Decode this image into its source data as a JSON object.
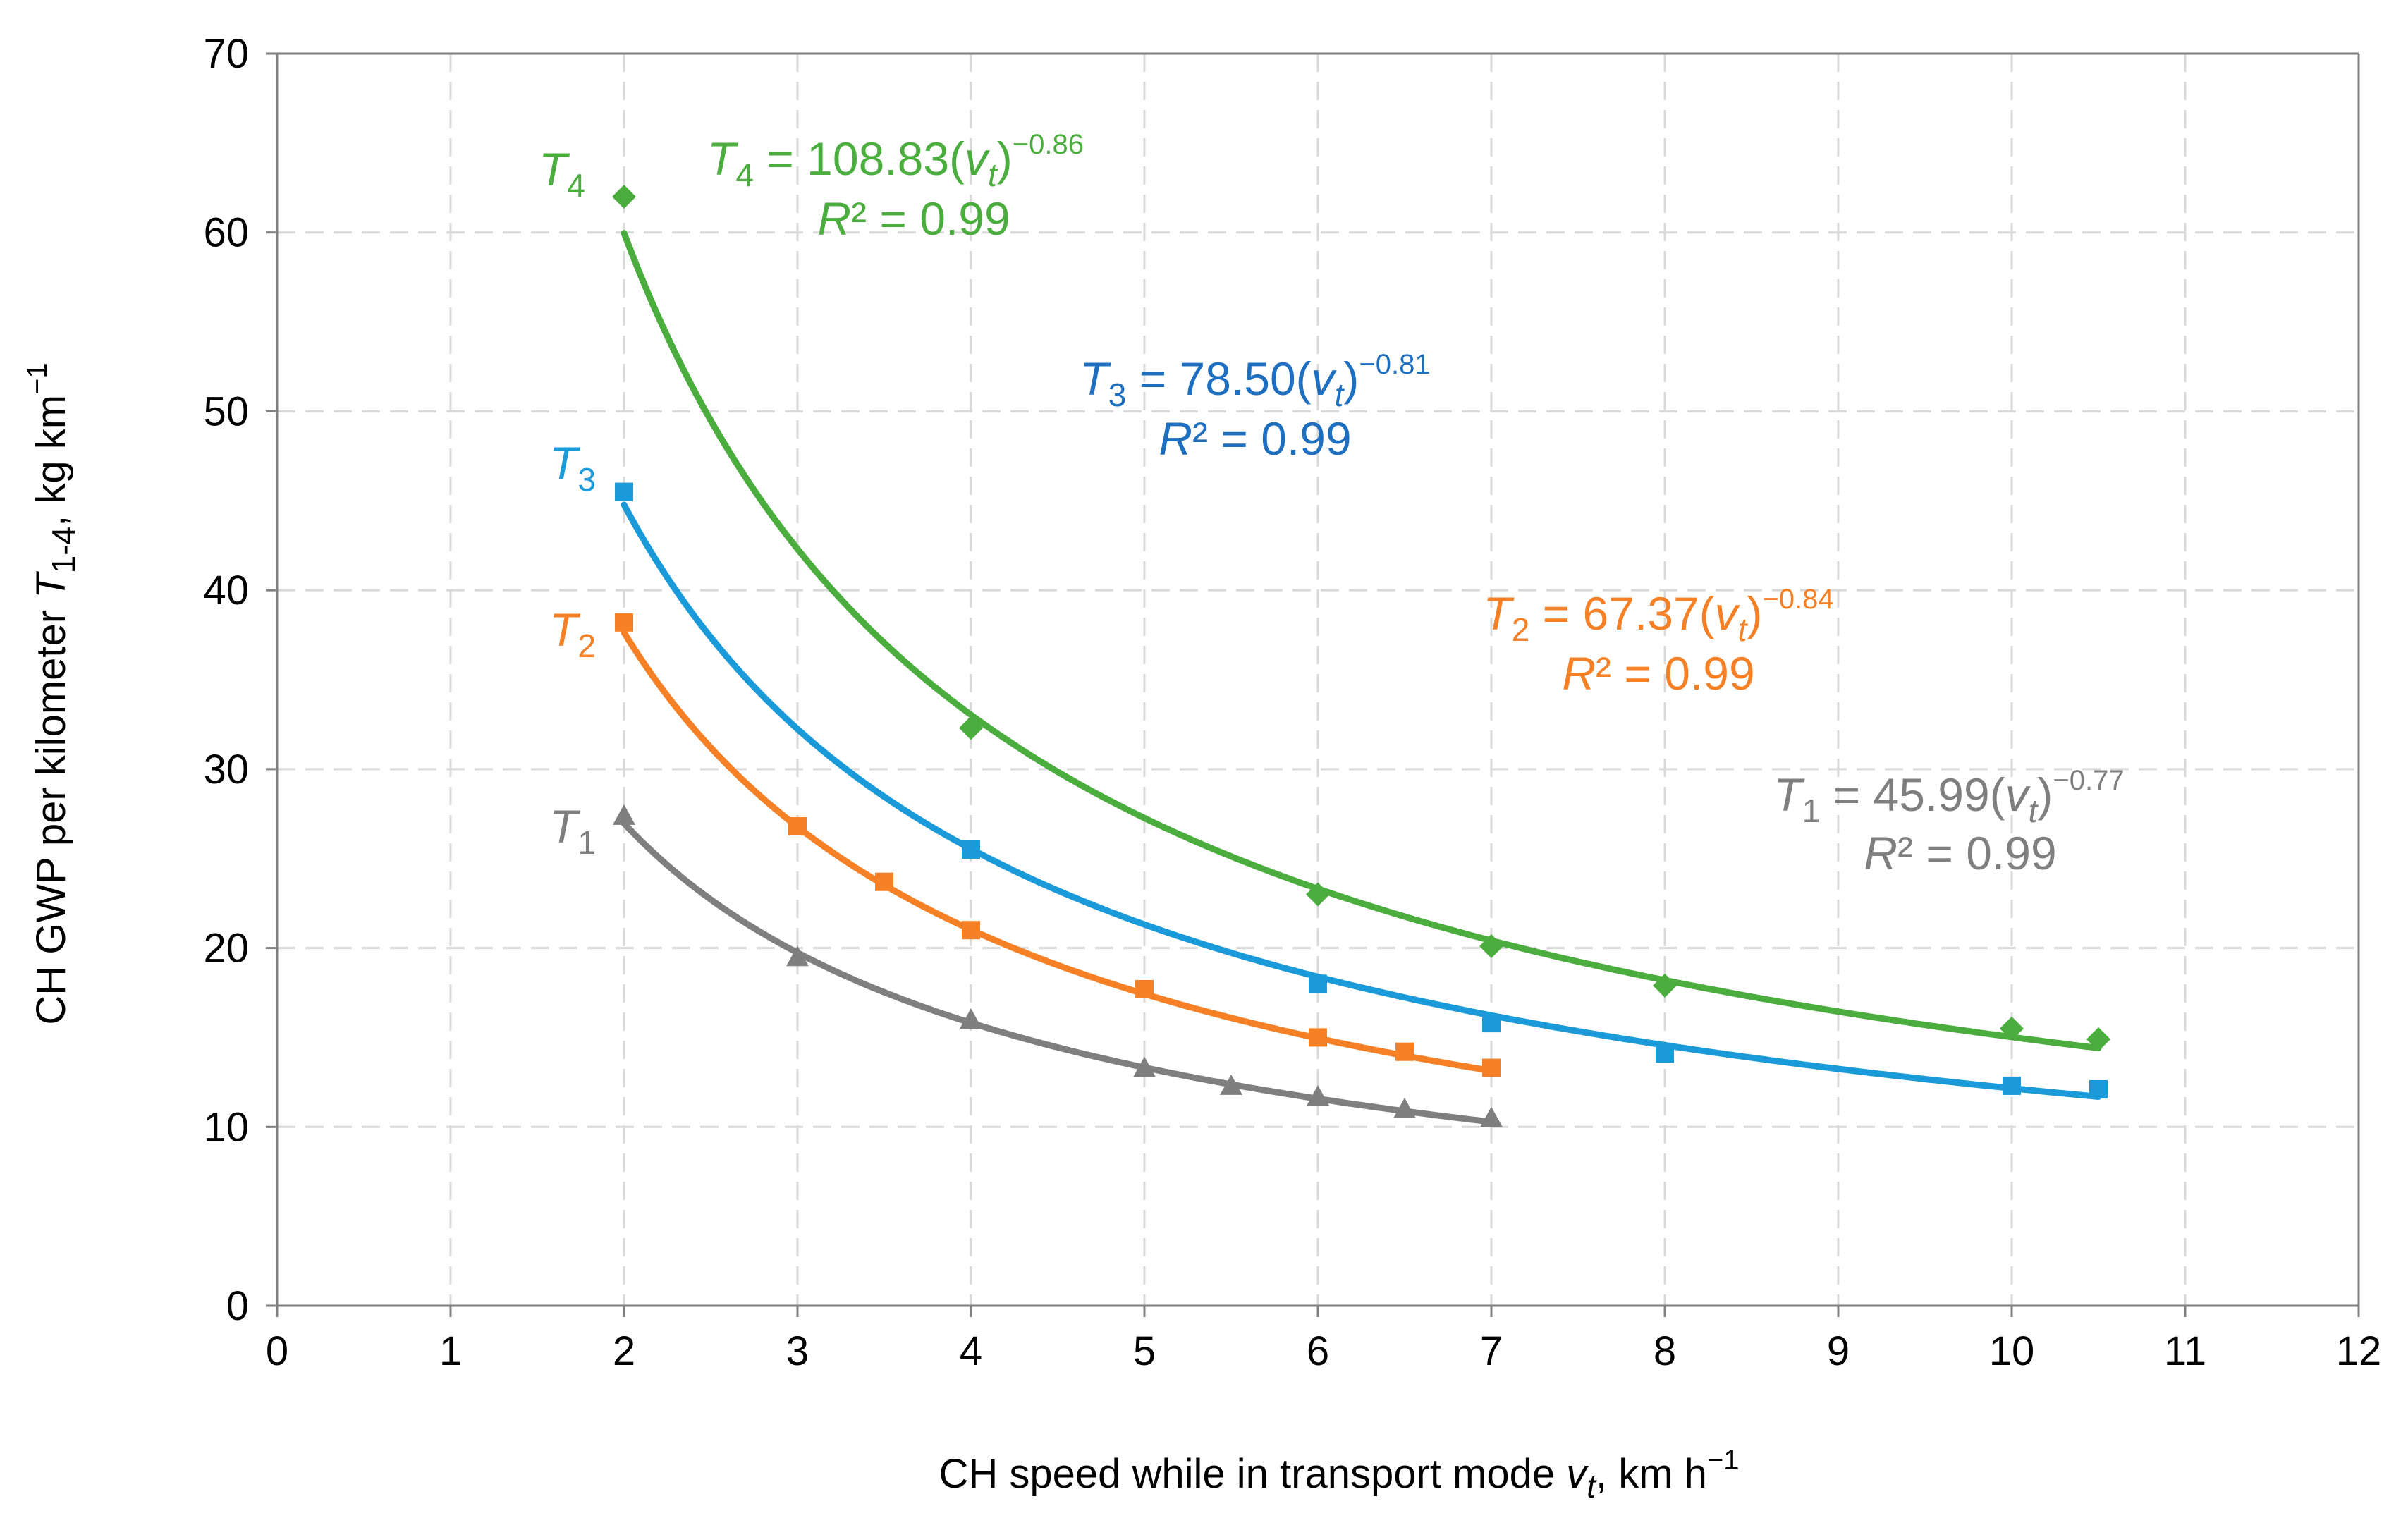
{
  "chart_data": {
    "type": "scatter",
    "xlabel": {
      "prefix": "CH speed while in transport mode ",
      "var": "v",
      "var_sub": "t",
      "suffix": ", km h",
      "suffix_sup": "−1"
    },
    "ylabel": {
      "prefix": "CH GWP per kilometer ",
      "var": "T",
      "var_sub": "1-4",
      "suffix": ", kg km",
      "suffix_sup": "−1"
    },
    "xlim": [
      0,
      12
    ],
    "ylim": [
      0,
      70
    ],
    "x_ticks": [
      "0",
      "1",
      "2",
      "3",
      "4",
      "5",
      "6",
      "7",
      "8",
      "9",
      "10",
      "11",
      "12"
    ],
    "y_ticks": [
      "0",
      "10",
      "20",
      "30",
      "40",
      "50",
      "60",
      "70"
    ],
    "grid": "dashed",
    "colors": {
      "T1": "#7f7f7f",
      "T2": "#f58025",
      "T3": "#1a9ad9",
      "T4": "#4aad3e",
      "T3_text": "#1f6fc0",
      "grid": "#d9d9d9",
      "axis": "#7f7f7f"
    },
    "series": [
      {
        "name": "T1",
        "name_base": "T",
        "name_sub": "1",
        "marker": "triangle",
        "color": "#7f7f7f",
        "x": [
          2,
          3,
          4,
          5,
          5.5,
          6,
          6.5,
          7
        ],
        "y": [
          27.4,
          19.5,
          16.0,
          13.3,
          12.3,
          11.7,
          11.0,
          10.5
        ],
        "fit": {
          "a": 45.99,
          "b": -0.77,
          "x_range": [
            2,
            7
          ]
        },
        "equation": {
          "lhs": "T",
          "lhs_sub": "1",
          "eq": " = 45.99(",
          "var": "v",
          "var_sub": "t",
          "close": ")",
          "exp": "−0.77"
        },
        "r2": "R² = 0.99"
      },
      {
        "name": "T2",
        "name_base": "T",
        "name_sub": "2",
        "marker": "square",
        "color": "#f58025",
        "x": [
          2,
          3,
          3.5,
          4,
          5,
          6,
          6.5,
          7
        ],
        "y": [
          38.2,
          26.8,
          23.7,
          21.0,
          17.7,
          15.0,
          14.2,
          13.3
        ],
        "fit": {
          "a": 67.37,
          "b": -0.84,
          "x_range": [
            2,
            7
          ]
        },
        "equation": {
          "lhs": "T",
          "lhs_sub": "2",
          "eq": " = 67.37(",
          "var": "v",
          "var_sub": "t",
          "close": ")",
          "exp": "−0.84"
        },
        "r2": "R² = 0.99"
      },
      {
        "name": "T3",
        "name_base": "T",
        "name_sub": "3",
        "marker": "square",
        "color": "#1a9ad9",
        "x": [
          2,
          4,
          6,
          7,
          8,
          10,
          10.5
        ],
        "y": [
          45.5,
          25.5,
          18.0,
          15.8,
          14.1,
          12.3,
          12.1
        ],
        "fit": {
          "a": 78.5,
          "b": -0.81,
          "x_range": [
            2,
            10.5
          ]
        },
        "equation": {
          "lhs": "T",
          "lhs_sub": "3",
          "eq": " = 78.50(",
          "var": "v",
          "var_sub": "t",
          "close": ")",
          "exp": "−0.81"
        },
        "r2": "R² = 0.99"
      },
      {
        "name": "T4",
        "name_base": "T",
        "name_sub": "4",
        "marker": "diamond",
        "color": "#4aad3e",
        "x": [
          2,
          4,
          6,
          7,
          8,
          10,
          10.5
        ],
        "y": [
          62.0,
          32.3,
          23.0,
          20.1,
          17.9,
          15.5,
          14.9
        ],
        "fit": {
          "a": 108.83,
          "b": -0.86,
          "x_range": [
            2,
            10.5
          ]
        },
        "equation": {
          "lhs": "T",
          "lhs_sub": "4",
          "eq": " = 108.83(",
          "var": "v",
          "var_sub": "t",
          "close": ")",
          "exp": "−0.86"
        },
        "r2": "R² = 0.99"
      }
    ]
  }
}
